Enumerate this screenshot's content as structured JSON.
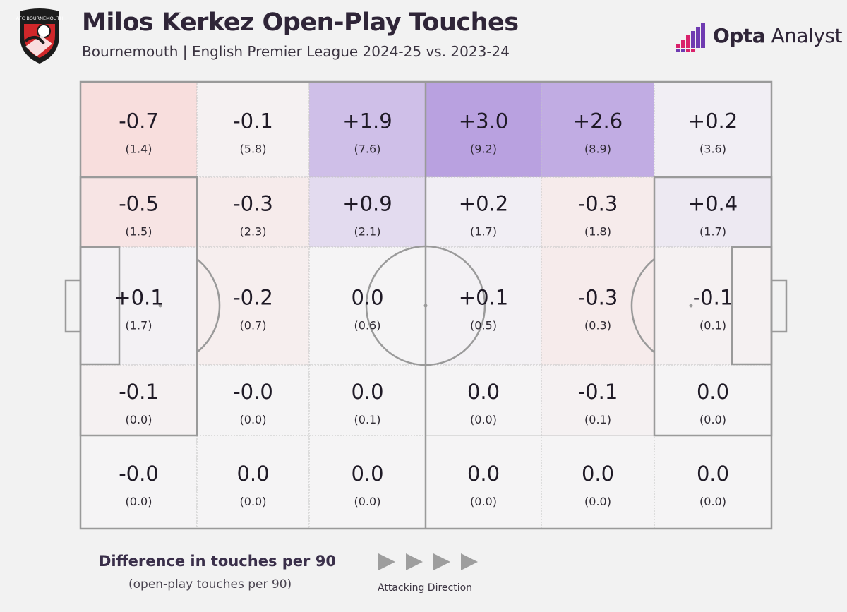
{
  "header": {
    "title": "Milos Kerkez Open-Play Touches",
    "subtitle": "Bournemouth | English Premier League 2024-25 vs. 2023-24",
    "badge_text": "AFC BOURNEMOUTH",
    "brand_bold": "Opta",
    "brand_light": " Analyst"
  },
  "legend": {
    "title": "Difference in touches per 90",
    "subtitle": "(open-play touches per 90)",
    "direction_label": "Attacking Direction"
  },
  "colors": {
    "positive_max": "#b9a1e0",
    "negative_max": "#f8dedd",
    "neutral": "#f5f4f5",
    "pitch_lines": "#9a9a9a",
    "badge_red": "#d0272a",
    "brand_purple": "#6f3bb1",
    "brand_pink": "#d9216b"
  },
  "chart_data": {
    "type": "heatmap",
    "title": "Milos Kerkez Open-Play Touches",
    "subtitle": "Bournemouth | English Premier League 2024-25 vs. 2023-24",
    "metric": "Difference in touches per 90",
    "base_metric": "(open-play touches per 90)",
    "attacking_direction": "left-to-right",
    "rows": [
      {
        "diffs": [
          "-0.7",
          "-0.1",
          "+1.9",
          "+3.0",
          "+2.6",
          "+0.2"
        ],
        "values": [
          "(1.4)",
          "(5.8)",
          "(7.6)",
          "(9.2)",
          "(8.9)",
          "(3.6)"
        ]
      },
      {
        "diffs": [
          "-0.5",
          "-0.3",
          "+0.9",
          "+0.2",
          "-0.3",
          "+0.4"
        ],
        "values": [
          "(1.5)",
          "(2.3)",
          "(2.1)",
          "(1.7)",
          "(1.8)",
          "(1.7)"
        ]
      },
      {
        "diffs": [
          "+0.1",
          "-0.2",
          "0.0",
          "+0.1",
          "-0.3",
          "-0.1"
        ],
        "values": [
          "(1.7)",
          "(0.7)",
          "(0.6)",
          "(0.5)",
          "(0.3)",
          "(0.1)"
        ]
      },
      {
        "diffs": [
          "-0.1",
          "-0.0",
          "0.0",
          "0.0",
          "-0.1",
          "0.0"
        ],
        "values": [
          "(0.0)",
          "(0.0)",
          "(0.1)",
          "(0.0)",
          "(0.1)",
          "(0.0)"
        ]
      },
      {
        "diffs": [
          "-0.0",
          "0.0",
          "0.0",
          "0.0",
          "0.0",
          "0.0"
        ],
        "values": [
          "(0.0)",
          "(0.0)",
          "(0.0)",
          "(0.0)",
          "(0.0)",
          "(0.0)"
        ]
      }
    ]
  }
}
